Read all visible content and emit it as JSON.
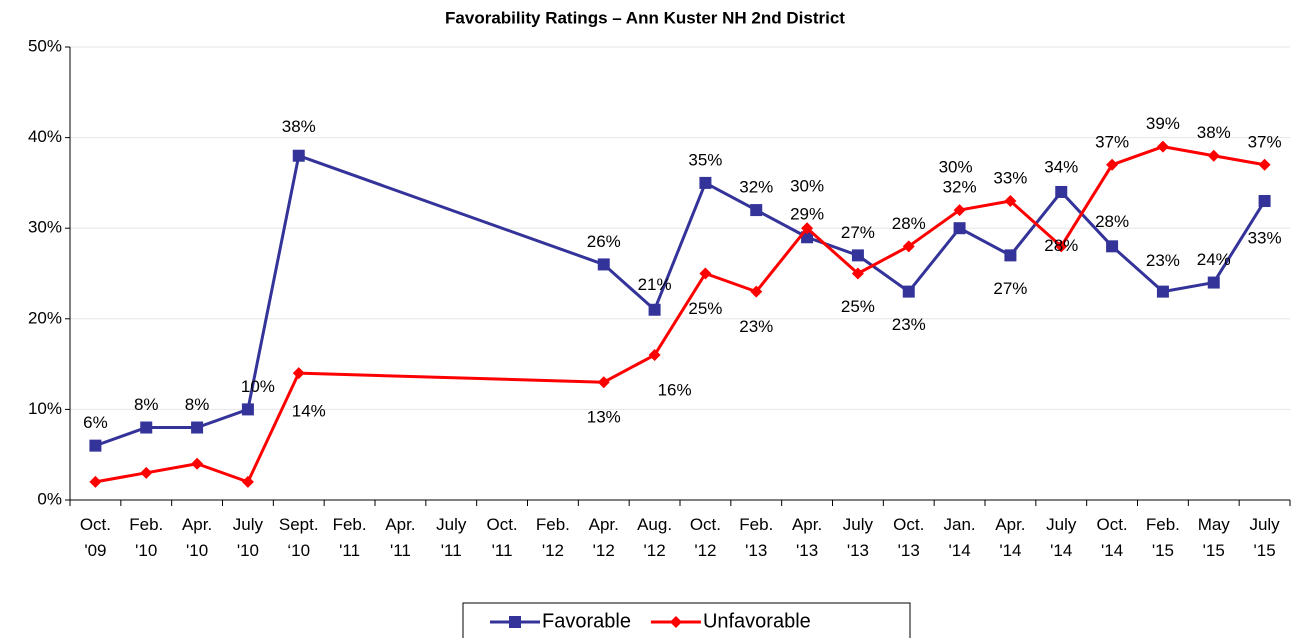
{
  "chart_data": {
    "type": "line",
    "title": "Favorability Ratings – Ann Kuster NH 2nd District",
    "categories": [
      "Oct. '09",
      "Feb. '10",
      "Apr. '10",
      "July '10",
      "Sept. ‘10",
      "Feb. '11",
      "Apr. '11",
      "July '11",
      "Oct. '11",
      "Feb. '12",
      "Apr. '12",
      "Aug. '12",
      "Oct. '12",
      "Feb. '13",
      "Apr. '13",
      "July '13",
      "Oct. '13",
      "Jan. '14",
      "Apr. '14",
      "July '14",
      "Oct. '14",
      "Feb. '15",
      "May '15",
      "July '15"
    ],
    "series": [
      {
        "name": "Favorable",
        "color": "#333399",
        "marker": "square",
        "values": [
          6,
          8,
          8,
          10,
          38,
          null,
          null,
          null,
          null,
          null,
          26,
          21,
          35,
          32,
          29,
          27,
          23,
          30,
          27,
          34,
          28,
          23,
          24,
          33
        ],
        "value_labels": [
          "6%",
          "8%",
          "8%",
          "10%",
          "38%",
          null,
          null,
          null,
          null,
          null,
          "26%",
          "21%",
          "35%",
          "32%",
          "29%",
          "27%",
          "23%",
          "30%",
          "27%",
          "34%",
          "28%",
          "23%",
          "24%",
          "33%"
        ]
      },
      {
        "name": "Unfavorable",
        "color": "#ff0000",
        "marker": "diamond",
        "values": [
          2,
          3,
          4,
          2,
          14,
          null,
          null,
          null,
          null,
          null,
          13,
          16,
          25,
          23,
          30,
          25,
          28,
          32,
          33,
          28,
          37,
          39,
          38,
          37
        ],
        "value_labels": [
          null,
          null,
          null,
          null,
          "14%",
          null,
          null,
          null,
          null,
          null,
          "13%",
          "16%",
          "25%",
          "23%",
          "30%",
          "25%",
          "28%",
          "32%",
          "33%",
          "28%",
          "37%",
          "39%",
          "38%",
          "37%"
        ]
      }
    ],
    "ylim": [
      0,
      50
    ],
    "yticks": [
      {
        "value": 0,
        "label": "0%"
      },
      {
        "value": 10,
        "label": "10%"
      },
      {
        "value": 20,
        "label": "20%"
      },
      {
        "value": 30,
        "label": "30%"
      },
      {
        "value": 40,
        "label": "40%"
      },
      {
        "value": 50,
        "label": "50%"
      }
    ],
    "grid": true,
    "connect_gaps": true,
    "legend": "bottom"
  }
}
